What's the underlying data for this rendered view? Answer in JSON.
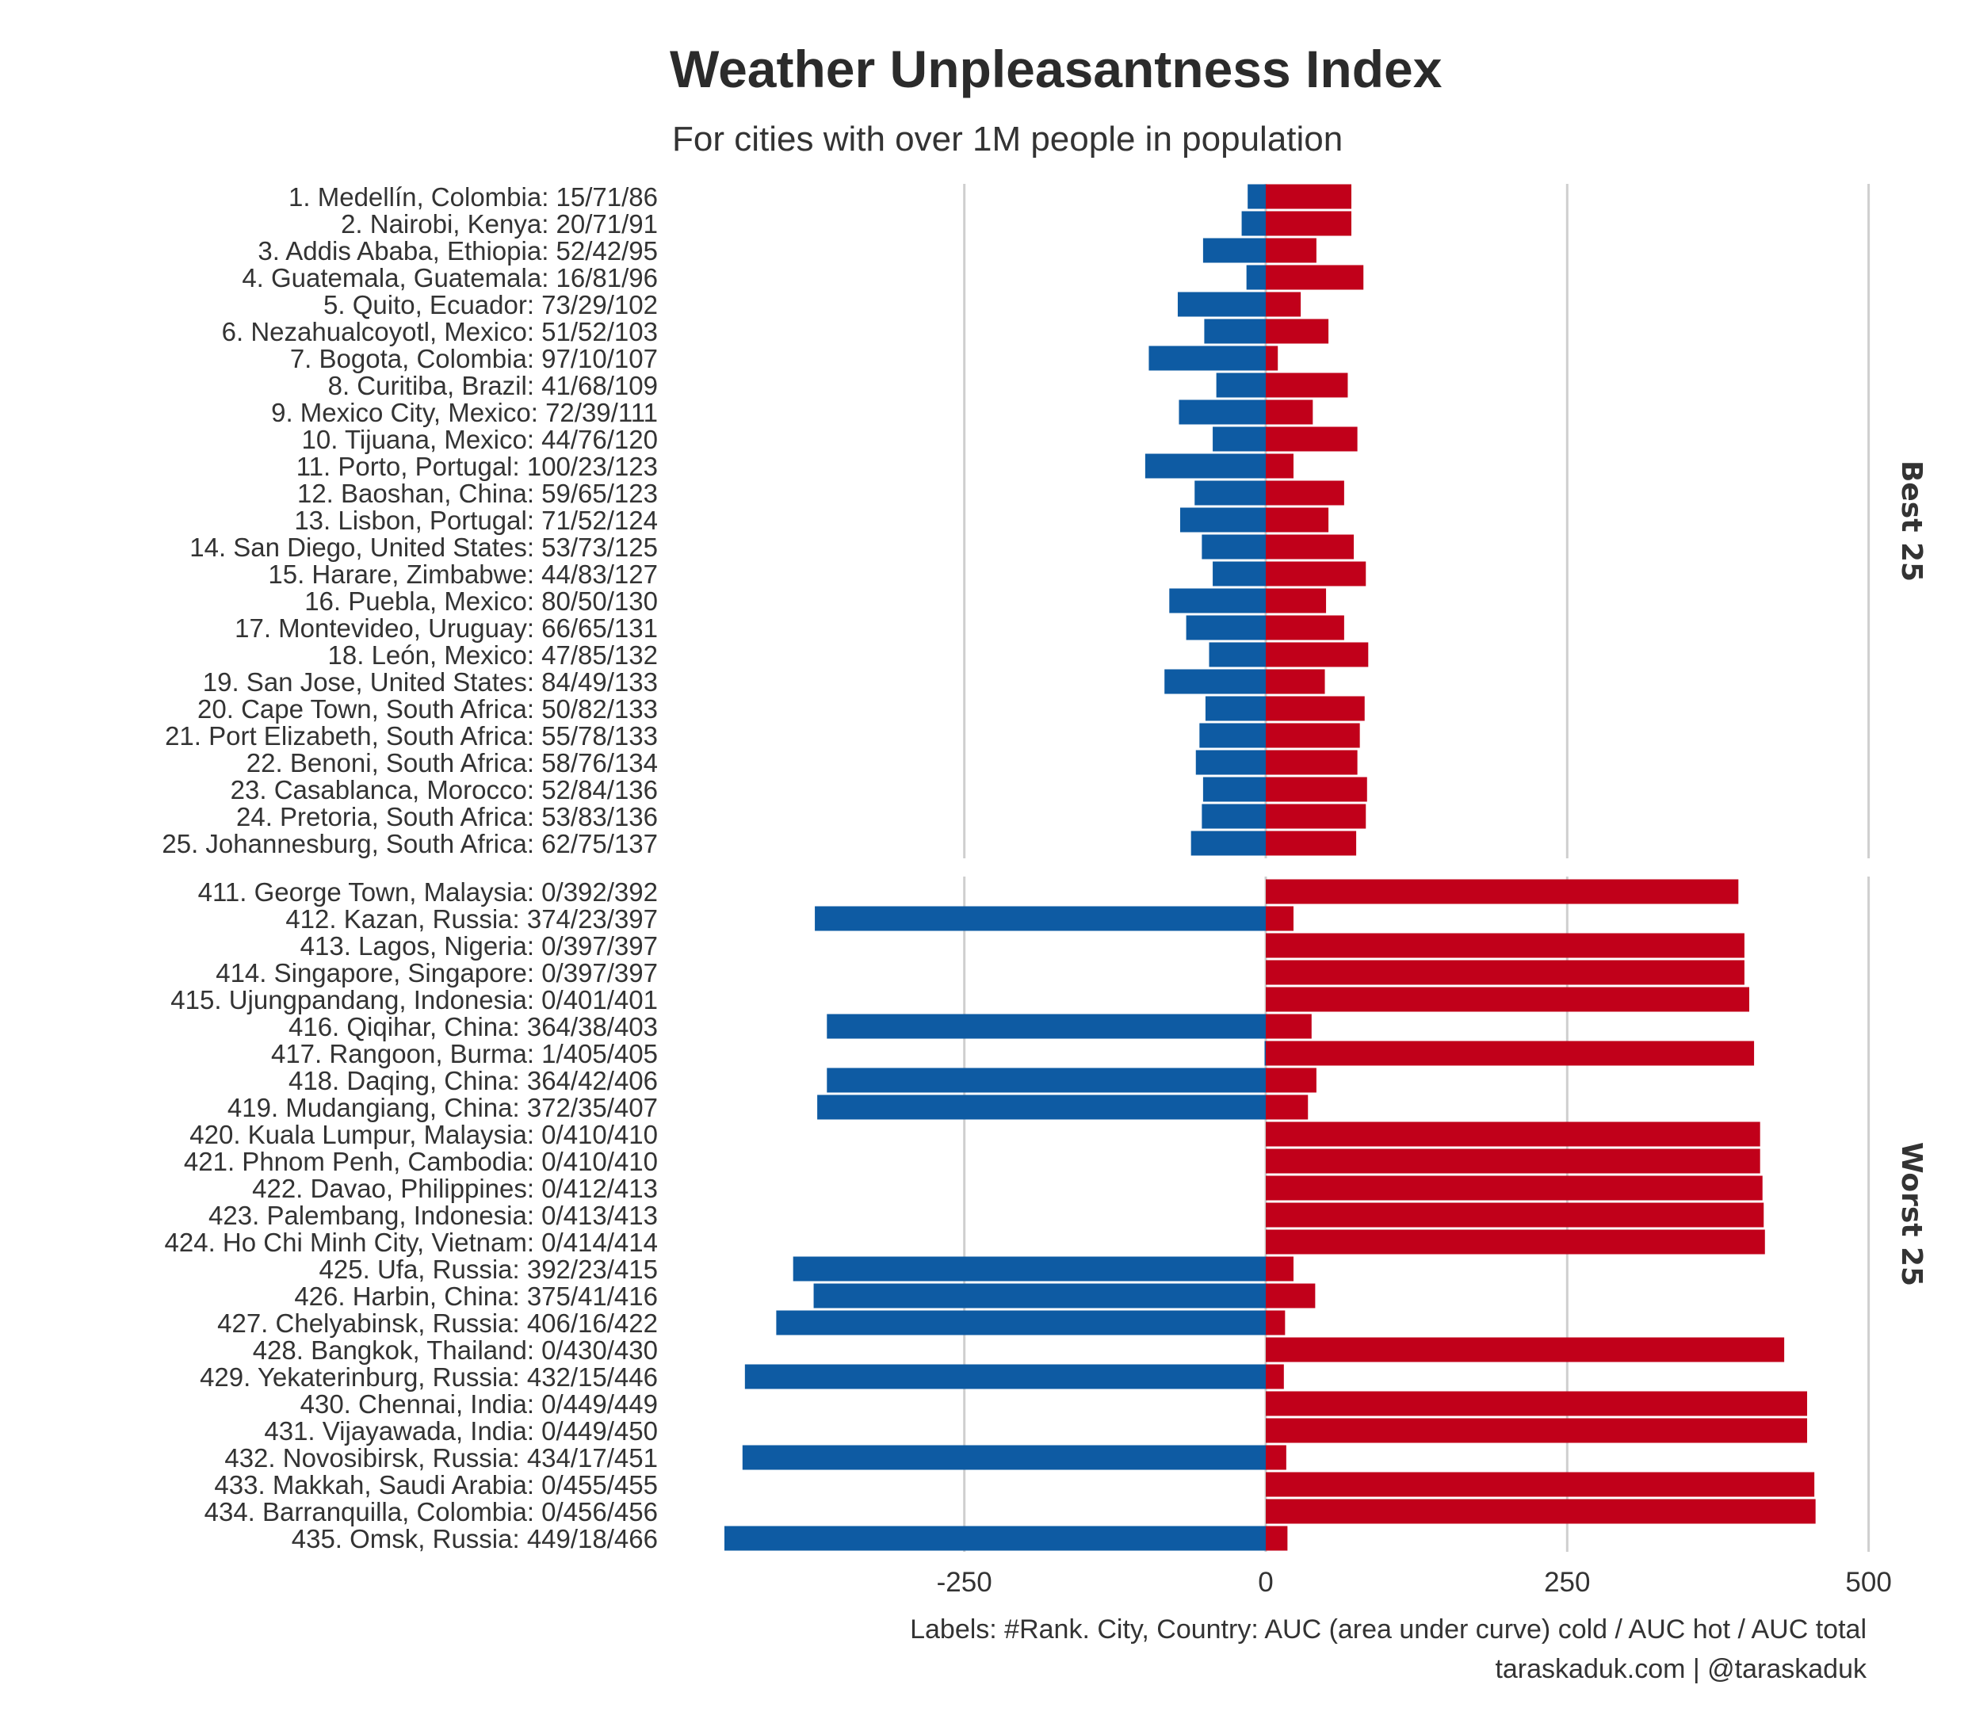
{
  "chart_data": {
    "type": "bar",
    "orientation": "horizontal-diverging",
    "title": "Weather Unpleasantness Index",
    "subtitle": "For cities with over 1M people in population",
    "x_ticks": [
      -250,
      0,
      250,
      500
    ],
    "x_tick_labels": [
      "-250",
      "0",
      "250",
      "500"
    ],
    "xlim": [
      -480,
      500
    ],
    "grid": true,
    "colors": {
      "cold": "#0e5ba3",
      "hot": "#c1001a"
    },
    "caption": [
      "Labels: #Rank. City, Country: AUC (area under curve) cold / AUC hot / AUC total",
      "taraskaduk.com | @taraskaduk"
    ],
    "facets": [
      {
        "name": "Best 25",
        "rows": [
          {
            "label": "1. Medellín, Colombia: 15/71/86",
            "cold": 15,
            "hot": 71
          },
          {
            "label": "2. Nairobi, Kenya: 20/71/91",
            "cold": 20,
            "hot": 71
          },
          {
            "label": "3. Addis Ababa, Ethiopia: 52/42/95",
            "cold": 52,
            "hot": 42
          },
          {
            "label": "4. Guatemala, Guatemala: 16/81/96",
            "cold": 16,
            "hot": 81
          },
          {
            "label": "5. Quito, Ecuador: 73/29/102",
            "cold": 73,
            "hot": 29
          },
          {
            "label": "6. Nezahualcoyotl, Mexico: 51/52/103",
            "cold": 51,
            "hot": 52
          },
          {
            "label": "7. Bogota, Colombia: 97/10/107",
            "cold": 97,
            "hot": 10
          },
          {
            "label": "8. Curitiba, Brazil: 41/68/109",
            "cold": 41,
            "hot": 68
          },
          {
            "label": "9. Mexico City, Mexico: 72/39/111",
            "cold": 72,
            "hot": 39
          },
          {
            "label": "10. Tijuana, Mexico: 44/76/120",
            "cold": 44,
            "hot": 76
          },
          {
            "label": "11. Porto, Portugal: 100/23/123",
            "cold": 100,
            "hot": 23
          },
          {
            "label": "12. Baoshan, China: 59/65/123",
            "cold": 59,
            "hot": 65
          },
          {
            "label": "13. Lisbon, Portugal: 71/52/124",
            "cold": 71,
            "hot": 52
          },
          {
            "label": "14. San Diego, United States: 53/73/125",
            "cold": 53,
            "hot": 73
          },
          {
            "label": "15. Harare, Zimbabwe: 44/83/127",
            "cold": 44,
            "hot": 83
          },
          {
            "label": "16. Puebla, Mexico: 80/50/130",
            "cold": 80,
            "hot": 50
          },
          {
            "label": "17. Montevideo, Uruguay: 66/65/131",
            "cold": 66,
            "hot": 65
          },
          {
            "label": "18. León, Mexico: 47/85/132",
            "cold": 47,
            "hot": 85
          },
          {
            "label": "19. San Jose, United States: 84/49/133",
            "cold": 84,
            "hot": 49
          },
          {
            "label": "20. Cape Town, South Africa: 50/82/133",
            "cold": 50,
            "hot": 82
          },
          {
            "label": "21. Port Elizabeth, South Africa: 55/78/133",
            "cold": 55,
            "hot": 78
          },
          {
            "label": "22. Benoni, South Africa: 58/76/134",
            "cold": 58,
            "hot": 76
          },
          {
            "label": "23. Casablanca, Morocco: 52/84/136",
            "cold": 52,
            "hot": 84
          },
          {
            "label": "24. Pretoria, South Africa: 53/83/136",
            "cold": 53,
            "hot": 83
          },
          {
            "label": "25. Johannesburg, South Africa: 62/75/137",
            "cold": 62,
            "hot": 75
          }
        ]
      },
      {
        "name": "Worst 25",
        "rows": [
          {
            "label": "411. George Town, Malaysia: 0/392/392",
            "cold": 0,
            "hot": 392
          },
          {
            "label": "412. Kazan, Russia: 374/23/397",
            "cold": 374,
            "hot": 23
          },
          {
            "label": "413. Lagos, Nigeria: 0/397/397",
            "cold": 0,
            "hot": 397
          },
          {
            "label": "414. Singapore, Singapore: 0/397/397",
            "cold": 0,
            "hot": 397
          },
          {
            "label": "415. Ujungpandang, Indonesia: 0/401/401",
            "cold": 0,
            "hot": 401
          },
          {
            "label": "416. Qiqihar, China: 364/38/403",
            "cold": 364,
            "hot": 38
          },
          {
            "label": "417. Rangoon, Burma: 1/405/405",
            "cold": 1,
            "hot": 405
          },
          {
            "label": "418. Daqing, China: 364/42/406",
            "cold": 364,
            "hot": 42
          },
          {
            "label": "419. Mudangiang, China: 372/35/407",
            "cold": 372,
            "hot": 35
          },
          {
            "label": "420. Kuala Lumpur, Malaysia: 0/410/410",
            "cold": 0,
            "hot": 410
          },
          {
            "label": "421. Phnom Penh, Cambodia: 0/410/410",
            "cold": 0,
            "hot": 410
          },
          {
            "label": "422. Davao, Philippines: 0/412/413",
            "cold": 0,
            "hot": 412
          },
          {
            "label": "423. Palembang, Indonesia: 0/413/413",
            "cold": 0,
            "hot": 413
          },
          {
            "label": "424. Ho Chi Minh City, Vietnam: 0/414/414",
            "cold": 0,
            "hot": 414
          },
          {
            "label": "425. Ufa, Russia: 392/23/415",
            "cold": 392,
            "hot": 23
          },
          {
            "label": "426. Harbin, China: 375/41/416",
            "cold": 375,
            "hot": 41
          },
          {
            "label": "427. Chelyabinsk, Russia: 406/16/422",
            "cold": 406,
            "hot": 16
          },
          {
            "label": "428. Bangkok, Thailand: 0/430/430",
            "cold": 0,
            "hot": 430
          },
          {
            "label": "429. Yekaterinburg, Russia: 432/15/446",
            "cold": 432,
            "hot": 15
          },
          {
            "label": "430. Chennai, India: 0/449/449",
            "cold": 0,
            "hot": 449
          },
          {
            "label": "431. Vijayawada, India: 0/449/450",
            "cold": 0,
            "hot": 449
          },
          {
            "label": "432. Novosibirsk, Russia: 434/17/451",
            "cold": 434,
            "hot": 17
          },
          {
            "label": "433. Makkah, Saudi Arabia: 0/455/455",
            "cold": 0,
            "hot": 455
          },
          {
            "label": "434. Barranquilla, Colombia: 0/456/456",
            "cold": 0,
            "hot": 456
          },
          {
            "label": "435. Omsk, Russia: 449/18/466",
            "cold": 449,
            "hot": 18
          }
        ]
      }
    ]
  }
}
